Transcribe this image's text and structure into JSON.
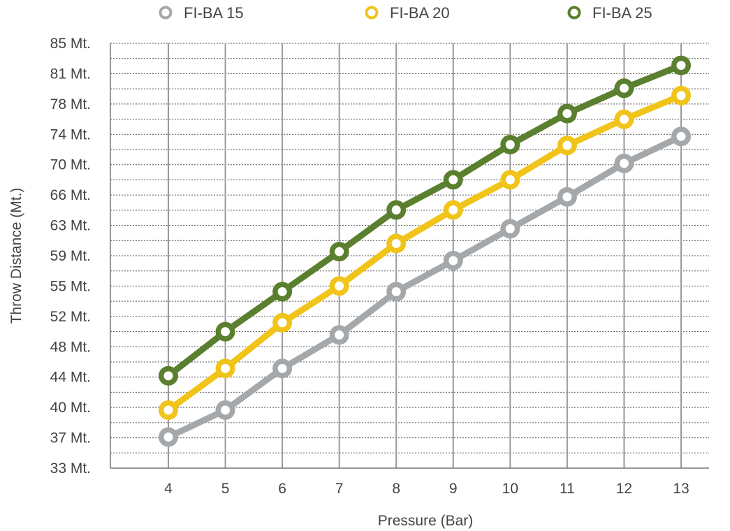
{
  "chart_data": {
    "type": "line",
    "xlabel": "Pressure (Bar)",
    "ylabel": "Throw Distance (Mt.)",
    "x": [
      4,
      5,
      6,
      7,
      8,
      9,
      10,
      11,
      12,
      13
    ],
    "y_ticks": [
      "33 Mt.",
      "37 Mt.",
      "40 Mt.",
      "44 Mt.",
      "48 Mt.",
      "52 Mt.",
      "55 Mt.",
      "59 Mt.",
      "63 Mt.",
      "66 Mt.",
      "70 Mt.",
      "74 Mt.",
      "78 Mt.",
      "81 Mt.",
      "85 Mt."
    ],
    "ylim": [
      33,
      85
    ],
    "grid": true,
    "legend_position": "top",
    "series": [
      {
        "name": "FI-BA 15",
        "color": "#a4a8aa",
        "values": [
          36.8,
          40.1,
          45.2,
          49.3,
          54.6,
          58.4,
          62.3,
          66.2,
          70.3,
          73.6
        ]
      },
      {
        "name": "FI-BA 20",
        "color": "#f0c419",
        "values": [
          40.1,
          45.2,
          50.8,
          55.3,
          60.5,
          64.6,
          68.3,
          72.5,
          75.7,
          78.6
        ]
      },
      {
        "name": "FI-BA 25",
        "color": "#5a7f2e",
        "values": [
          44.3,
          49.7,
          54.6,
          59.5,
          64.6,
          68.3,
          72.6,
          76.4,
          79.5,
          82.3
        ]
      }
    ]
  }
}
